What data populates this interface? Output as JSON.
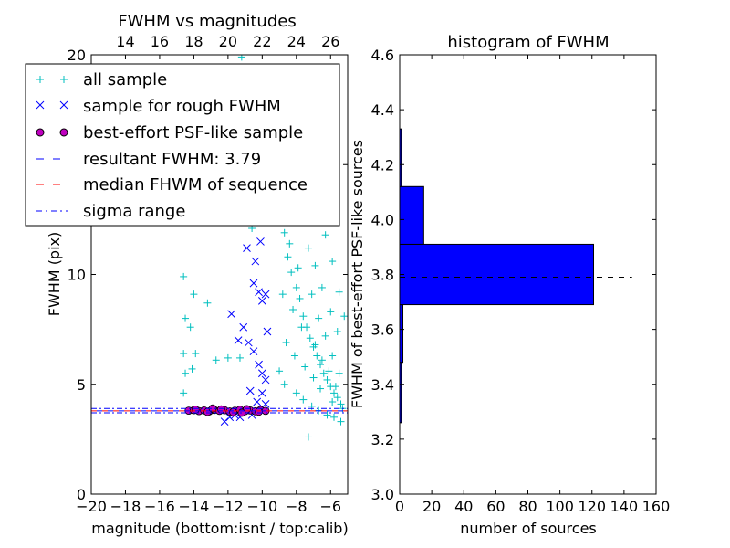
{
  "chart_data": [
    {
      "type": "scatter",
      "title": "FWHM vs magnitudes",
      "xlabel": "magnitude (bottom:isnt / top:calib)",
      "ylabel": "FWHM (pix)",
      "xlim": [
        -20,
        -5
      ],
      "ylim": [
        0,
        20
      ],
      "x_ticks": [
        -20,
        -18,
        -16,
        -14,
        -12,
        -10,
        -8,
        -6
      ],
      "x_tick_labels": [
        "−20",
        "−18",
        "−16",
        "−14",
        "−12",
        "−10",
        "−8",
        "−6"
      ],
      "y_ticks": [
        0,
        5,
        10,
        15,
        20
      ],
      "y_tick_labels": [
        "0",
        "5",
        "10",
        "15",
        "20"
      ],
      "top_axis": {
        "ticks": [
          14,
          16,
          18,
          20,
          22,
          24,
          26
        ],
        "tick_labels": [
          "14",
          "16",
          "18",
          "20",
          "22",
          "24",
          "26"
        ],
        "offset": 32
      },
      "series": [
        {
          "name": "all sample",
          "marker": "+",
          "color": "#00bfbf"
        },
        {
          "name": "sample for rough FWHM",
          "marker": "x",
          "color": "#0000ff"
        },
        {
          "name": "best-effort PSF-like sample",
          "marker": "o",
          "color": "#bf00bf"
        },
        {
          "name": "resultant FWHM: 3.79",
          "line": "dashed",
          "color": "#0000ff",
          "y": 3.79
        },
        {
          "name": "median FHWM of sequence",
          "line": "dashed",
          "color": "#ff0000",
          "y": 3.79
        },
        {
          "name": "sigma range",
          "line": "dashdot",
          "color": "#0000ff",
          "y": [
            3.7,
            3.9
          ]
        }
      ],
      "sample_points": {
        "all_sample": [
          [
            -14.7,
            14.6
          ],
          [
            -14.6,
            9.9
          ],
          [
            -14.5,
            8
          ],
          [
            -14.2,
            7.6
          ],
          [
            -14.0,
            9.1
          ],
          [
            -14.6,
            6.4
          ],
          [
            -14.5,
            5.5
          ],
          [
            -14.1,
            5.7
          ],
          [
            -14.6,
            4.6
          ],
          [
            -13.9,
            6.4
          ],
          [
            -13.2,
            8.7
          ],
          [
            -12.7,
            6.1
          ],
          [
            -12.0,
            6.2
          ],
          [
            -11.3,
            6.2
          ],
          [
            -11.2,
            19.9
          ],
          [
            -10.9,
            14.8
          ],
          [
            -10.6,
            12.1
          ],
          [
            -10.3,
            18.1
          ],
          [
            -9.8,
            17.9
          ],
          [
            -9.5,
            16.0
          ],
          [
            -9.2,
            13.5
          ],
          [
            -8.9,
            12.4
          ],
          [
            -8.7,
            11.9
          ],
          [
            -8.5,
            10.8
          ],
          [
            -8.3,
            10.1
          ],
          [
            -8.0,
            9.4
          ],
          [
            -7.8,
            8.9
          ],
          [
            -7.6,
            8.1
          ],
          [
            -7.4,
            7.6
          ],
          [
            -7.2,
            7.1
          ],
          [
            -7.0,
            6.7
          ],
          [
            -6.8,
            6.3
          ],
          [
            -6.6,
            5.9
          ],
          [
            -6.4,
            5.5
          ],
          [
            -6.2,
            5.2
          ],
          [
            -6.0,
            4.9
          ],
          [
            -5.8,
            4.6
          ],
          [
            -5.6,
            4.4
          ],
          [
            -5.4,
            4.1
          ],
          [
            -7.3,
            2.6
          ],
          [
            -8.4,
            11.4
          ],
          [
            -7.9,
            10.3
          ],
          [
            -7.1,
            9.1
          ],
          [
            -6.7,
            8.0
          ],
          [
            -6.3,
            7.2
          ],
          [
            -5.9,
            6.3
          ],
          [
            -5.5,
            5.5
          ],
          [
            -8.8,
            9.1
          ],
          [
            -8.2,
            8.4
          ],
          [
            -7.7,
            7.6
          ],
          [
            -6.9,
            6.8
          ],
          [
            -6.5,
            6.1
          ],
          [
            -6.1,
            5.6
          ],
          [
            -5.7,
            4.9
          ],
          [
            -8.6,
            6.9
          ],
          [
            -8.1,
            6.3
          ],
          [
            -7.5,
            5.8
          ],
          [
            -7.0,
            5.3
          ],
          [
            -6.6,
            4.8
          ],
          [
            -5.9,
            4.2
          ],
          [
            -5.3,
            3.9
          ],
          [
            -8.9,
            14.1
          ],
          [
            -8.4,
            13.2
          ],
          [
            -7.8,
            12.5
          ],
          [
            -7.3,
            11.2
          ],
          [
            -6.9,
            10.4
          ],
          [
            -6.5,
            9.4
          ],
          [
            -6.0,
            8.3
          ],
          [
            -5.6,
            7.4
          ],
          [
            -9.0,
            5.6
          ],
          [
            -8.7,
            5.0
          ],
          [
            -8.0,
            4.6
          ],
          [
            -7.6,
            4.3
          ],
          [
            -7.1,
            4.0
          ],
          [
            -6.7,
            3.8
          ],
          [
            -6.2,
            3.6
          ],
          [
            -5.8,
            3.5
          ],
          [
            -5.4,
            3.3
          ],
          [
            -8.5,
            15.2
          ],
          [
            -7.9,
            14.3
          ],
          [
            -7.4,
            13.7
          ],
          [
            -6.8,
            12.9
          ],
          [
            -6.3,
            11.8
          ],
          [
            -5.9,
            10.6
          ],
          [
            -5.5,
            9.2
          ],
          [
            -5.2,
            8.1
          ]
        ],
        "rough_sample": [
          [
            -12.2,
            3.3
          ],
          [
            -11.9,
            3.5
          ],
          [
            -11.6,
            3.6
          ],
          [
            -11.3,
            3.5
          ],
          [
            -11.8,
            8.2
          ],
          [
            -11.4,
            7.0
          ],
          [
            -11.1,
            7.6
          ],
          [
            -10.8,
            6.9
          ],
          [
            -10.5,
            6.5
          ],
          [
            -10.2,
            5.9
          ],
          [
            -10.0,
            5.5
          ],
          [
            -9.8,
            5.2
          ],
          [
            -10.9,
            11.2
          ],
          [
            -10.6,
            13.6
          ],
          [
            -10.3,
            14.5
          ],
          [
            -10.1,
            16.9
          ],
          [
            -9.9,
            19.4
          ],
          [
            -9.7,
            18.2
          ],
          [
            -10.5,
            9.6
          ],
          [
            -10.2,
            9.2
          ],
          [
            -10.0,
            8.8
          ],
          [
            -9.8,
            9.1
          ],
          [
            -9.7,
            7.4
          ],
          [
            -10.4,
            10.6
          ],
          [
            -10.1,
            11.5
          ],
          [
            -9.9,
            12.7
          ],
          [
            -9.8,
            14.9
          ],
          [
            -10.7,
            4.7
          ],
          [
            -10.3,
            4.2
          ],
          [
            -10.0,
            4.6
          ],
          [
            -9.8,
            4.1
          ],
          [
            -10.6,
            3.6
          ]
        ],
        "psf_sample": [
          [
            -14.3,
            3.8
          ],
          [
            -14.0,
            3.82
          ],
          [
            -13.7,
            3.78
          ],
          [
            -13.4,
            3.81
          ],
          [
            -13.1,
            3.77
          ],
          [
            -12.8,
            3.83
          ],
          [
            -12.5,
            3.79
          ],
          [
            -12.2,
            3.82
          ],
          [
            -11.9,
            3.76
          ],
          [
            -11.6,
            3.8
          ],
          [
            -11.3,
            3.84
          ],
          [
            -11.0,
            3.78
          ],
          [
            -10.7,
            3.81
          ],
          [
            -10.4,
            3.77
          ],
          [
            -10.1,
            3.83
          ],
          [
            -9.8,
            3.79
          ],
          [
            -13.9,
            3.85
          ],
          [
            -13.2,
            3.74
          ],
          [
            -12.4,
            3.86
          ],
          [
            -11.7,
            3.73
          ],
          [
            -10.9,
            3.87
          ],
          [
            -10.2,
            3.75
          ],
          [
            -12.9,
            3.9
          ],
          [
            -11.2,
            3.7
          ]
        ]
      },
      "legend_position": "upper-left"
    },
    {
      "type": "bar",
      "orientation": "horizontal",
      "title": "histogram of FWHM",
      "xlabel": "number of sources",
      "ylabel": "FWHM of best-effort PSF-like sources",
      "xlim": [
        0,
        160
      ],
      "ylim": [
        3.0,
        4.6
      ],
      "x_ticks": [
        0,
        20,
        40,
        60,
        80,
        100,
        120,
        140,
        160
      ],
      "x_tick_labels": [
        "0",
        "20",
        "40",
        "60",
        "80",
        "100",
        "120",
        "140",
        "160"
      ],
      "y_ticks": [
        3.0,
        3.2,
        3.4,
        3.6,
        3.8,
        4.0,
        4.2,
        4.4,
        4.6
      ],
      "y_tick_labels": [
        "3.0",
        "3.2",
        "3.4",
        "3.6",
        "3.8",
        "4.0",
        "4.2",
        "4.4",
        "4.6"
      ],
      "bars": [
        {
          "y0": 3.26,
          "y1": 3.48,
          "count": 1
        },
        {
          "y0": 3.48,
          "y1": 3.69,
          "count": 2
        },
        {
          "y0": 3.69,
          "y1": 3.91,
          "count": 121
        },
        {
          "y0": 3.91,
          "y1": 4.12,
          "count": 15
        },
        {
          "y0": 4.12,
          "y1": 4.33,
          "count": 1
        }
      ],
      "bar_color": "#0000ff",
      "reference_line": {
        "y": 3.79,
        "x_range": [
          0,
          145
        ],
        "style": "dashed",
        "color": "#000000"
      }
    }
  ],
  "colors": {
    "cyan": "#00bfbf",
    "blue": "#0000ff",
    "magenta": "#bf00bf",
    "red": "#ff0000",
    "black": "#000000"
  }
}
